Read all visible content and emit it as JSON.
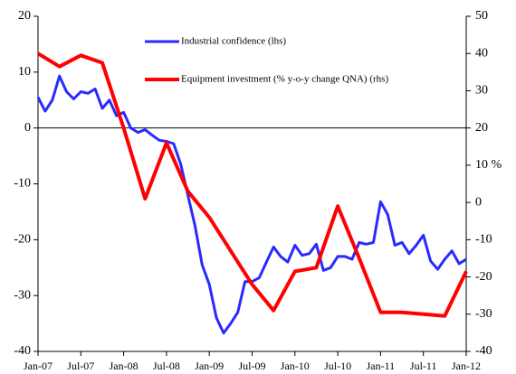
{
  "chart_data": {
    "type": "line",
    "xlim": [
      "Jan-07",
      "Jan-12"
    ],
    "xticks": [
      "Jan-07",
      "Jul-07",
      "Jan-08",
      "Jul-08",
      "Jan-09",
      "Jul-09",
      "Jan-10",
      "Jul-10",
      "Jan-11",
      "Jul-11",
      "Jan-12"
    ],
    "ylim": [
      -40,
      20
    ],
    "yticks": [
      -40,
      -30,
      -20,
      -10,
      0,
      10,
      20
    ],
    "y2lim": [
      -40,
      50
    ],
    "y2ticks": [
      -40,
      -30,
      -20,
      -10,
      0,
      {
        "value": 10,
        "label": "10 %"
      },
      20,
      30,
      40,
      50
    ],
    "series": [
      {
        "name": "Industrial confidence (lhs)",
        "color": "#2a2aff",
        "x": [
          "Jan-07",
          "Feb-07",
          "Mar-07",
          "Apr-07",
          "May-07",
          "Jun-07",
          "Jul-07",
          "Aug-07",
          "Sep-07",
          "Oct-07",
          "Nov-07",
          "Dec-07",
          "Jan-08",
          "Feb-08",
          "Mar-08",
          "Apr-08",
          "May-08",
          "Jun-08",
          "Jul-08",
          "Aug-08",
          "Sep-08",
          "Oct-08",
          "Nov-08",
          "Dec-08",
          "Jan-09",
          "Feb-09",
          "Mar-09",
          "Apr-09",
          "May-09",
          "Jun-09",
          "Jul-09",
          "Aug-09",
          "Sep-09",
          "Oct-09",
          "Nov-09",
          "Dec-09",
          "Jan-10",
          "Feb-10",
          "Mar-10",
          "Apr-10",
          "May-10",
          "Jun-10",
          "Jul-10",
          "Aug-10",
          "Sep-10",
          "Oct-10",
          "Nov-10",
          "Dec-10",
          "Jan-11",
          "Feb-11",
          "Mar-11",
          "Apr-11",
          "May-11",
          "Jun-11",
          "Jul-11",
          "Aug-11",
          "Sep-11",
          "Oct-11",
          "Nov-11",
          "Dec-11",
          "Jan-12"
        ],
        "values": [
          5.5,
          3,
          5,
          9.3,
          6.5,
          5.2,
          6.5,
          6.2,
          7,
          3.5,
          5,
          2.2,
          2.8,
          0,
          -0.8,
          -0.3,
          -1.3,
          -2.2,
          -2.4,
          -2.8,
          -6.5,
          -12,
          -17.5,
          -24.5,
          -28,
          -34,
          -36.7,
          -35,
          -33,
          -27.5,
          -27.5,
          -26.8,
          -24,
          -21.3,
          -23,
          -24,
          -21,
          -22.8,
          -22.5,
          -20.8,
          -25.5,
          -25,
          -23,
          -23,
          -23.5,
          -20.5,
          -20.8,
          -20.5,
          -13.2,
          -15.5,
          -21,
          -20.5,
          -22.5,
          -21,
          -19.2,
          -23.8,
          -25.3,
          -23.5,
          -22,
          -24.3,
          -23.5
        ]
      },
      {
        "name": "Equipment investment (% y-o-y change QNA) (rhs)",
        "color": "#ff0000",
        "axis": "y2",
        "x": [
          "Jan-07",
          "Apr-07",
          "Jul-07",
          "Oct-07",
          "Jan-08",
          "Apr-08",
          "Jul-08",
          "Oct-08",
          "Jan-09",
          "Apr-09",
          "Jul-09",
          "Oct-09",
          "Jan-10",
          "Apr-10",
          "Jul-10",
          "Oct-10",
          "Jan-11",
          "Apr-11",
          "Jul-11",
          "Oct-11",
          "Jan-12"
        ],
        "values": [
          40,
          36.5,
          39.5,
          37.5,
          20,
          1,
          16,
          3,
          -4,
          -13,
          -22,
          -29,
          -18.5,
          -17.5,
          -1,
          -15,
          -29.5,
          -29.5,
          -30,
          -30.5,
          -18.5
        ]
      }
    ]
  }
}
